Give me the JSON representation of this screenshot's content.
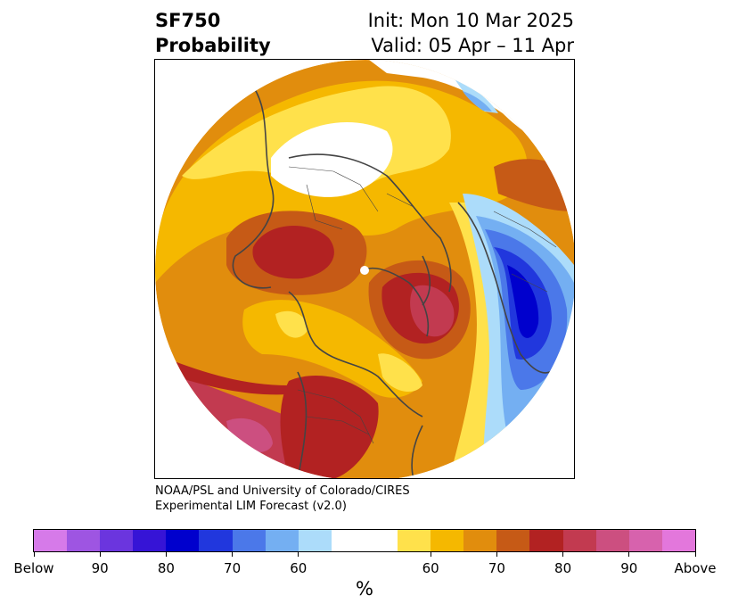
{
  "header": {
    "left_line1": "SF750",
    "left_line2": "Probability",
    "right_line1": "Init: Mon 10 Mar 2025",
    "right_line2": "Valid: 05 Apr – 11 Apr"
  },
  "credit": {
    "line1": "NOAA/PSL and University of Colorado/CIRES",
    "line2": "Experimental LIM Forecast (v2.0)"
  },
  "colorbar": {
    "unit": "%",
    "colors": [
      "#d67ae9",
      "#9e55e2",
      "#6b35de",
      "#3614d6",
      "#0000cd",
      "#2137dd",
      "#4b78e9",
      "#74aff2",
      "#acdcfa",
      "#ffffff",
      "#ffffff",
      "#ffe14b",
      "#f5b800",
      "#e18d0d",
      "#c65a16",
      "#b22222",
      "#c23a50",
      "#cc4f80",
      "#d762ad",
      "#e377dc"
    ],
    "ticks": [
      "Below",
      "90",
      "80",
      "70",
      "60",
      "60",
      "70",
      "80",
      "90",
      "Above"
    ]
  },
  "map": {
    "projection": "north-polar-stereographic",
    "colors": {
      "cream": "#ffe14b",
      "yellow": "#f5b800",
      "orange": "#e18d0d",
      "dark_orange": "#c65a16",
      "red": "#b22222",
      "crimson": "#c23a50",
      "pink": "#cc4f80",
      "light_blue": "#acdcfa",
      "mid_blue": "#74aff2",
      "blue": "#4b78e9",
      "royal_blue": "#2137dd",
      "deep_blue": "#0000cd",
      "coast": "#444444"
    }
  }
}
